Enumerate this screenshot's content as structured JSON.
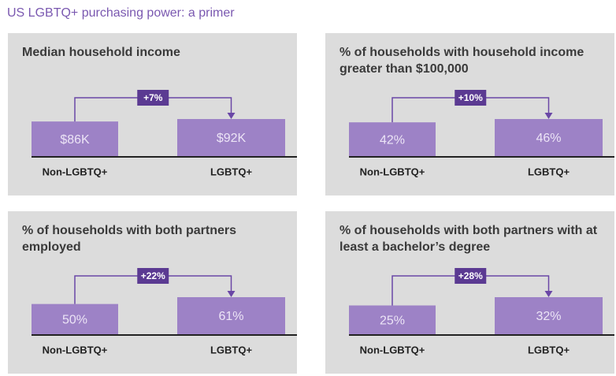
{
  "title": "US LGBTQ+ purchasing power: a primer",
  "chart_data": [
    {
      "type": "bar",
      "title": "Median household income",
      "categories": [
        "Non-LGBTQ+",
        "LGBTQ+"
      ],
      "values": [
        86000,
        92000
      ],
      "value_labels": [
        "$86K",
        "$92K"
      ],
      "annotation": "+7%",
      "color": "#9d82c6"
    },
    {
      "type": "bar",
      "title": "% of households with household income greater than $100,000",
      "categories": [
        "Non-LGBTQ+",
        "LGBTQ+"
      ],
      "values": [
        42,
        46
      ],
      "value_labels": [
        "42%",
        "46%"
      ],
      "annotation": "+10%",
      "color": "#9d82c6"
    },
    {
      "type": "bar",
      "title": "% of households with both partners employed",
      "categories": [
        "Non-LGBTQ+",
        "LGBTQ+"
      ],
      "values": [
        50,
        61
      ],
      "value_labels": [
        "50%",
        "61%"
      ],
      "annotation": "+22%",
      "color": "#9d82c6"
    },
    {
      "type": "bar",
      "title": "% of households with both partners with at least a bachelor’s degree",
      "categories": [
        "Non-LGBTQ+",
        "LGBTQ+"
      ],
      "values": [
        25,
        32
      ],
      "value_labels": [
        "25%",
        "32%"
      ],
      "annotation": "+28%",
      "color": "#9d82c6"
    }
  ]
}
